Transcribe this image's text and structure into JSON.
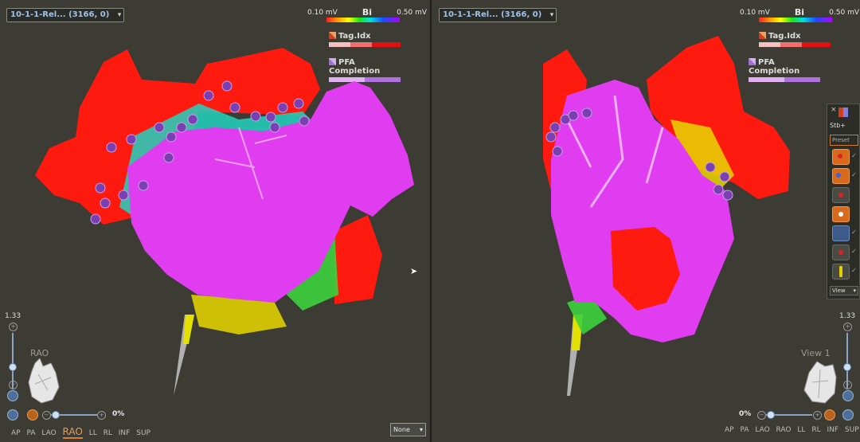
{
  "left": {
    "study_selector": "10-1-1-Rel... (3166, 0)",
    "legend": {
      "low": "0.10 mV",
      "name": "Bi",
      "high": "0.50 mV"
    },
    "tag_label": "Tag.Idx",
    "pfa_label": "PFA Completion",
    "zoom": "1.33",
    "heart_view_label": "RAO",
    "opacity": "0%",
    "views": [
      "AP",
      "PA",
      "LAO",
      "RAO",
      "LL",
      "RL",
      "INF",
      "SUP"
    ],
    "active_view": "RAO",
    "none_select": "None"
  },
  "right": {
    "study_selector": "10-1-1-Rel... (3166, 0)",
    "legend": {
      "low": "0.10 mV",
      "name": "Bi",
      "high": "0.50 mV"
    },
    "tag_label": "Tag.Idx",
    "pfa_label": "PFA Completion",
    "zoom": "1.33",
    "heart_view_label": "View 1",
    "opacity": "0%",
    "views": [
      "AP",
      "PA",
      "LAO",
      "RAO",
      "LL",
      "RL",
      "INF",
      "SUP"
    ]
  },
  "toolbar": {
    "close": "×",
    "stb_label": "Stb+",
    "preset_placeholder": "Preset",
    "view_label": "View"
  },
  "colors": {
    "background": "#3c3b34",
    "map_red": "#ff1a10",
    "map_magenta": "#e03cf0",
    "tag_purple": "#7a3fb0",
    "accent_orange": "#e07b2a",
    "selector_text": "#9fc2e8"
  },
  "icons": [
    "chevron-down-icon",
    "tag-icon",
    "pfa-icon",
    "heart-icon",
    "map-point-icon",
    "cursor-icon"
  ]
}
